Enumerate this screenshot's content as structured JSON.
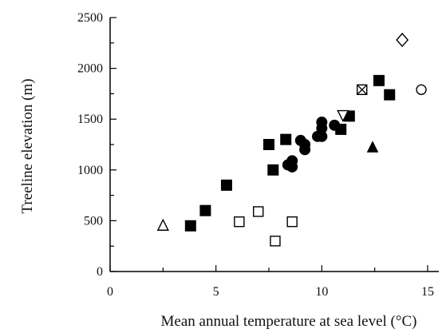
{
  "chart_data": {
    "type": "scatter",
    "xlabel": "Mean annual temperature at sea level (°C)",
    "ylabel": "Treeline elevation (m)",
    "xlim": [
      0,
      15
    ],
    "ylim": [
      0,
      2500
    ],
    "x_ticks": [
      "0",
      "5",
      "10",
      "15"
    ],
    "y_ticks": [
      "0",
      "500",
      "1000",
      "1500",
      "2000",
      "2500"
    ],
    "grid": false,
    "series": [
      {
        "marker": "filled-square",
        "points": [
          {
            "x": 3.8,
            "y": 450
          },
          {
            "x": 4.5,
            "y": 600
          },
          {
            "x": 5.5,
            "y": 850
          },
          {
            "x": 7.5,
            "y": 1250
          },
          {
            "x": 7.7,
            "y": 1000
          },
          {
            "x": 8.3,
            "y": 1300
          },
          {
            "x": 10.9,
            "y": 1400
          },
          {
            "x": 11.3,
            "y": 1530
          },
          {
            "x": 12.7,
            "y": 1880
          },
          {
            "x": 13.2,
            "y": 1740
          }
        ]
      },
      {
        "marker": "filled-circle",
        "points": [
          {
            "x": 8.4,
            "y": 1050
          },
          {
            "x": 8.6,
            "y": 1090
          },
          {
            "x": 8.6,
            "y": 1030
          },
          {
            "x": 9.0,
            "y": 1290
          },
          {
            "x": 9.2,
            "y": 1250
          },
          {
            "x": 9.2,
            "y": 1200
          },
          {
            "x": 9.8,
            "y": 1330
          },
          {
            "x": 10.0,
            "y": 1470
          },
          {
            "x": 10.0,
            "y": 1410
          },
          {
            "x": 10.0,
            "y": 1330
          },
          {
            "x": 10.6,
            "y": 1440
          }
        ]
      },
      {
        "marker": "open-square",
        "points": [
          {
            "x": 6.1,
            "y": 490
          },
          {
            "x": 7.0,
            "y": 590
          },
          {
            "x": 7.8,
            "y": 300
          },
          {
            "x": 8.6,
            "y": 490
          }
        ]
      },
      {
        "marker": "open-triangle",
        "points": [
          {
            "x": 2.5,
            "y": 450
          }
        ]
      },
      {
        "marker": "filled-triangle",
        "points": [
          {
            "x": 12.4,
            "y": 1220
          }
        ]
      },
      {
        "marker": "open-triangle-down",
        "points": [
          {
            "x": 11.0,
            "y": 1540
          }
        ]
      },
      {
        "marker": "crossed-square",
        "points": [
          {
            "x": 11.9,
            "y": 1790
          }
        ]
      },
      {
        "marker": "open-circle",
        "points": [
          {
            "x": 14.7,
            "y": 1790
          }
        ]
      },
      {
        "marker": "open-diamond",
        "points": [
          {
            "x": 13.8,
            "y": 2280
          }
        ]
      }
    ]
  }
}
